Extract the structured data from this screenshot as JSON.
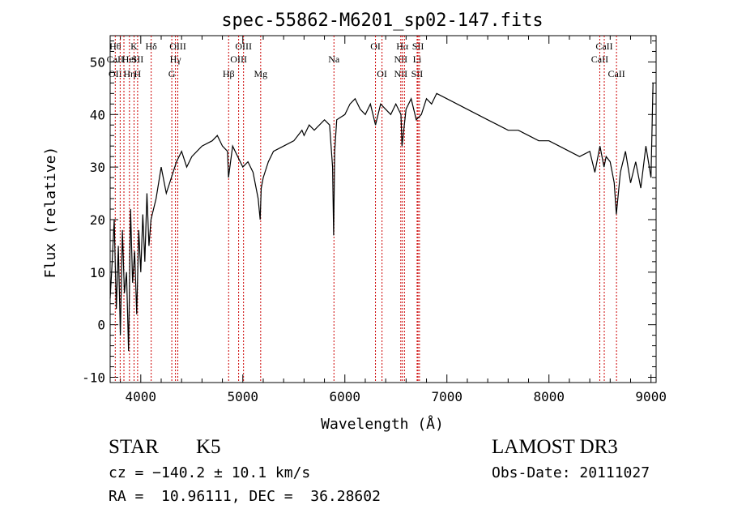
{
  "chart_data": {
    "type": "line",
    "title": "spec-55862-M6201_sp02-147.fits",
    "xlabel": "Wavelength (Å)",
    "ylabel": "Flux (relative)",
    "xlim": [
      3700,
      9050
    ],
    "ylim": [
      -11,
      55
    ],
    "xticks": [
      4000,
      5000,
      6000,
      7000,
      8000,
      9000
    ],
    "yticks": [
      -10,
      0,
      10,
      20,
      30,
      40,
      50
    ],
    "x": [
      3700,
      3720,
      3740,
      3760,
      3780,
      3800,
      3820,
      3840,
      3860,
      3880,
      3900,
      3920,
      3940,
      3960,
      3980,
      4000,
      4020,
      4040,
      4060,
      4080,
      4100,
      4150,
      4200,
      4250,
      4300,
      4350,
      4400,
      4450,
      4500,
      4600,
      4700,
      4750,
      4800,
      4850,
      4860,
      4900,
      4950,
      5000,
      5050,
      5100,
      5150,
      5170,
      5180,
      5200,
      5250,
      5300,
      5400,
      5500,
      5580,
      5600,
      5650,
      5700,
      5800,
      5850,
      5880,
      5890,
      5900,
      5920,
      6000,
      6050,
      6100,
      6150,
      6200,
      6250,
      6300,
      6350,
      6400,
      6450,
      6500,
      6550,
      6560,
      6600,
      6650,
      6700,
      6750,
      6800,
      6850,
      6900,
      7000,
      7100,
      7200,
      7300,
      7400,
      7500,
      7600,
      7700,
      7800,
      7900,
      8000,
      8100,
      8200,
      8300,
      8400,
      8450,
      8500,
      8540,
      8560,
      8600,
      8640,
      8660,
      8700,
      8750,
      8800,
      8850,
      8900,
      8950,
      9000,
      9020
    ],
    "series": [
      {
        "values": [
          5,
          12,
          20,
          3,
          15,
          -2,
          18,
          6,
          10,
          -5,
          22,
          8,
          14,
          2,
          18,
          10,
          21,
          12,
          25,
          15,
          20,
          24,
          30,
          25,
          28,
          31,
          33,
          30,
          32,
          34,
          35,
          36,
          34,
          33,
          28,
          34,
          32,
          30,
          31,
          29,
          24,
          20,
          26,
          28,
          31,
          33,
          34,
          35,
          37,
          36,
          38,
          37,
          39,
          38,
          30,
          17,
          33,
          39,
          40,
          42,
          43,
          41,
          40,
          42,
          38,
          42,
          41,
          40,
          42,
          40,
          34,
          41,
          43,
          39,
          40,
          43,
          42,
          44,
          43,
          42,
          41,
          40,
          39,
          38,
          37,
          37,
          36,
          35,
          35,
          34,
          33,
          32,
          33,
          29,
          34,
          30,
          32,
          31,
          27,
          21,
          29,
          33,
          27,
          31,
          26,
          34,
          28,
          46
        ]
      }
    ],
    "lines": [
      {
        "x": 3750,
        "labels": [
          "Hθ",
          "CaII",
          "OII"
        ]
      },
      {
        "x": 3798,
        "labels": [
          "",
          "",
          ""
        ]
      },
      {
        "x": 3835,
        "labels": [
          "",
          "",
          ""
        ]
      },
      {
        "x": 3889,
        "labels": [
          "",
          "HeI",
          "Hη"
        ]
      },
      {
        "x": 3934,
        "labels": [
          "K",
          "",
          ""
        ]
      },
      {
        "x": 3969,
        "labels": [
          "",
          "SII",
          "H"
        ]
      },
      {
        "x": 4102,
        "labels": [
          "Hδ",
          "",
          ""
        ]
      },
      {
        "x": 4304,
        "labels": [
          "",
          "",
          "G"
        ]
      },
      {
        "x": 4340,
        "labels": [
          "",
          "Hγ",
          ""
        ]
      },
      {
        "x": 4363,
        "labels": [
          "OIII",
          "",
          ""
        ]
      },
      {
        "x": 4861,
        "labels": [
          "",
          "",
          "Hβ"
        ]
      },
      {
        "x": 4959,
        "labels": [
          "",
          "OIII",
          ""
        ]
      },
      {
        "x": 5007,
        "labels": [
          "OIII",
          "",
          ""
        ]
      },
      {
        "x": 5175,
        "labels": [
          "",
          "",
          "Mg"
        ]
      },
      {
        "x": 5893,
        "labels": [
          "",
          "Na",
          ""
        ]
      },
      {
        "x": 6300,
        "labels": [
          "OI",
          "",
          ""
        ]
      },
      {
        "x": 6364,
        "labels": [
          "",
          "",
          "OI"
        ]
      },
      {
        "x": 6548,
        "labels": [
          "",
          "NII",
          "NII"
        ]
      },
      {
        "x": 6563,
        "labels": [
          "Hα",
          "",
          ""
        ]
      },
      {
        "x": 6584,
        "labels": [
          "",
          "",
          ""
        ]
      },
      {
        "x": 6708,
        "labels": [
          "",
          "Li",
          "SII"
        ]
      },
      {
        "x": 6717,
        "labels": [
          "SII",
          "",
          ""
        ]
      },
      {
        "x": 6731,
        "labels": [
          "",
          "",
          ""
        ]
      },
      {
        "x": 8498,
        "labels": [
          "",
          "CaII",
          ""
        ]
      },
      {
        "x": 8542,
        "labels": [
          "CaII",
          "",
          ""
        ]
      },
      {
        "x": 8662,
        "labels": [
          "",
          "",
          "CaII"
        ]
      }
    ],
    "colors": {
      "spectrum": "#000000",
      "line_marker": "#cc0000"
    }
  },
  "info": {
    "obj_class": "STAR",
    "obj_subclass": "K5",
    "survey": "LAMOST DR3",
    "cz": "cz = −140.2 ± 10.1 km/s",
    "obs_date": "Obs-Date: 20111027",
    "radec": "RA =  10.96111, DEC =  36.28602"
  }
}
